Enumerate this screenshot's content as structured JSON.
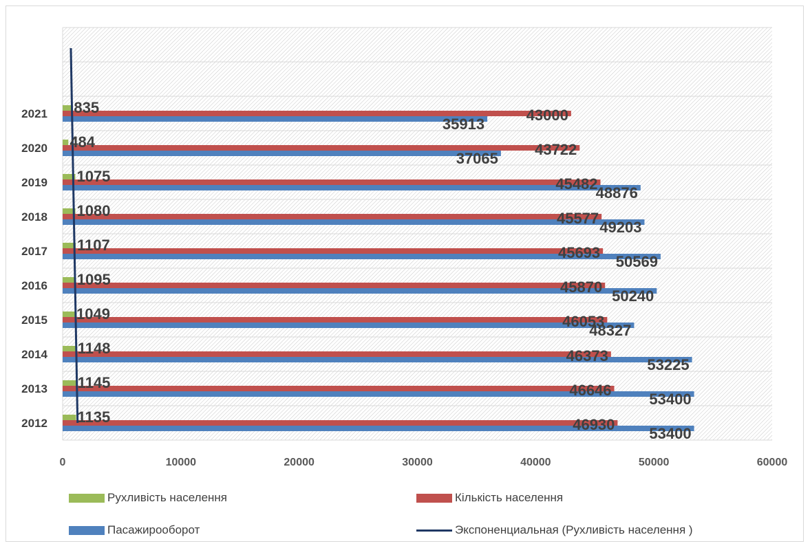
{
  "chart_data": {
    "type": "bar",
    "orientation": "horizontal",
    "categories": [
      "2012",
      "2013",
      "2014",
      "2015",
      "2016",
      "2017",
      "2018",
      "2019",
      "2020",
      "2021"
    ],
    "series": [
      {
        "name": "Рухливість населення",
        "color": "#9bbb59",
        "values": [
          1135,
          1145,
          1148,
          1049,
          1095,
          1107,
          1080,
          1075,
          484,
          835
        ]
      },
      {
        "name": "Кількість населення",
        "color": "#c0504d",
        "values": [
          46930,
          46646,
          46373,
          46053,
          45870,
          45693,
          45577,
          45482,
          43722,
          43000
        ]
      },
      {
        "name": "Пасажирооборот",
        "color": "#4f81bd",
        "values": [
          53400,
          53400,
          53225,
          48327,
          50240,
          50569,
          49203,
          48876,
          37065,
          35913
        ]
      }
    ],
    "trendline": {
      "name": "Экспоненциальная (Рухливість населення )",
      "type": "exponential",
      "series": "Рухливість населення",
      "color": "#1f3864"
    },
    "xlim": [
      0,
      60000
    ],
    "x_ticks": [
      "0",
      "10000",
      "20000",
      "30000",
      "40000",
      "50000",
      "60000"
    ],
    "grid": true,
    "legend_position": "bottom"
  }
}
